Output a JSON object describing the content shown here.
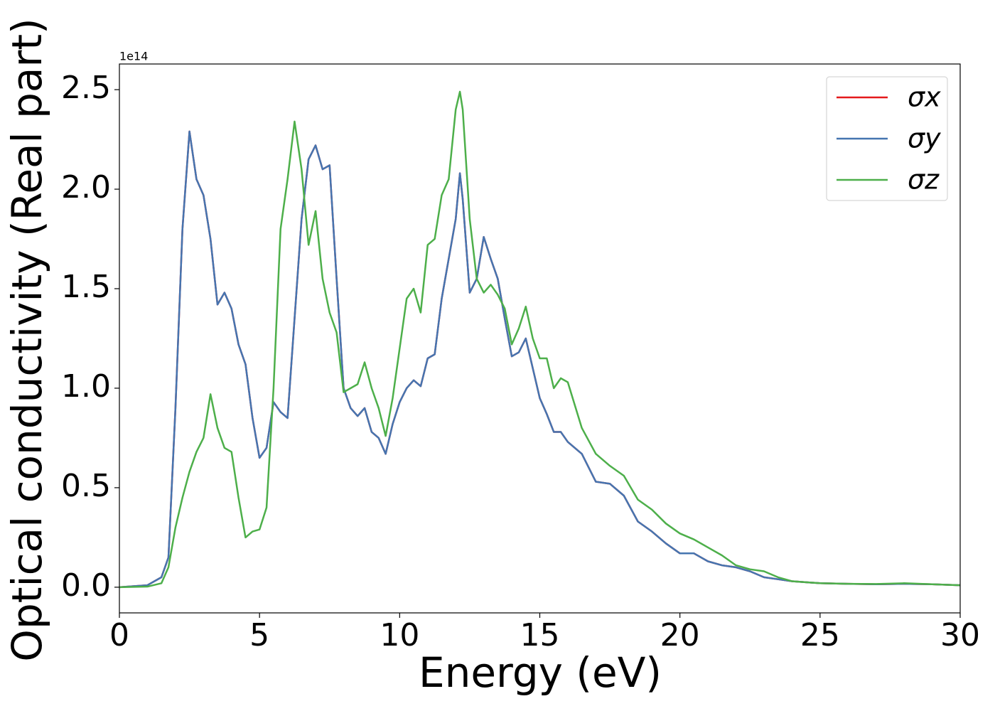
{
  "chart_data": {
    "type": "line",
    "xlabel": "Energy (eV)",
    "ylabel": "Optical conductivity (Real part)",
    "y_offset_label": "1e14",
    "xlim": [
      0,
      30
    ],
    "ylim": [
      -0.129,
      2.629
    ],
    "xticks": [
      0,
      5,
      10,
      15,
      20,
      25,
      30
    ],
    "yticks": [
      {
        "value": 0,
        "label": "0.0"
      },
      0.5,
      {
        "value": 1,
        "label": "1.0"
      },
      1.5,
      {
        "value": 2,
        "label": "2.0"
      },
      2.5
    ],
    "grid": false,
    "legend": "upper right",
    "x": [
      0,
      1,
      1.5,
      1.75,
      2,
      2.25,
      2.5,
      2.75,
      3,
      3.25,
      3.5,
      3.75,
      4,
      4.25,
      4.5,
      4.75,
      5,
      5.25,
      5.5,
      5.75,
      6,
      6.25,
      6.5,
      6.75,
      7,
      7.25,
      7.5,
      7.75,
      8,
      8.25,
      8.5,
      8.75,
      9,
      9.25,
      9.5,
      9.75,
      10,
      10.25,
      10.5,
      10.75,
      11,
      11.25,
      11.5,
      11.75,
      12,
      12.15,
      12.25,
      12.5,
      12.75,
      13,
      13.25,
      13.5,
      13.75,
      14,
      14.25,
      14.5,
      14.75,
      15,
      15.25,
      15.5,
      15.75,
      16,
      16.5,
      17,
      17.5,
      18,
      18.5,
      19,
      19.5,
      20,
      20.5,
      21,
      21.5,
      22,
      22.5,
      23,
      23.5,
      24,
      25,
      26,
      27,
      28,
      29,
      30
    ],
    "series": [
      {
        "name": "σx",
        "color": "#e41a1c",
        "values": [
          0,
          0.01,
          0.05,
          0.15,
          0.9,
          1.8,
          2.29,
          2.05,
          1.97,
          1.75,
          1.42,
          1.48,
          1.4,
          1.22,
          1.12,
          0.85,
          0.65,
          0.7,
          0.93,
          0.88,
          0.85,
          1.35,
          1.85,
          2.15,
          2.22,
          2.1,
          2.12,
          1.55,
          1.0,
          0.9,
          0.86,
          0.9,
          0.78,
          0.75,
          0.67,
          0.82,
          0.93,
          1.0,
          1.04,
          1.01,
          1.15,
          1.17,
          1.45,
          1.65,
          1.85,
          2.08,
          1.95,
          1.48,
          1.55,
          1.76,
          1.65,
          1.55,
          1.35,
          1.16,
          1.18,
          1.25,
          1.1,
          0.95,
          0.87,
          0.78,
          0.78,
          0.73,
          0.67,
          0.53,
          0.52,
          0.46,
          0.33,
          0.28,
          0.22,
          0.17,
          0.17,
          0.13,
          0.11,
          0.1,
          0.08,
          0.05,
          0.04,
          0.03,
          0.02,
          0.017,
          0.015,
          0.017,
          0.015,
          0.01
        ]
      },
      {
        "name": "σy",
        "color": "#4575b0",
        "values": [
          0,
          0.01,
          0.05,
          0.15,
          0.9,
          1.8,
          2.29,
          2.05,
          1.97,
          1.75,
          1.42,
          1.48,
          1.4,
          1.22,
          1.12,
          0.85,
          0.65,
          0.7,
          0.93,
          0.88,
          0.85,
          1.35,
          1.85,
          2.15,
          2.22,
          2.1,
          2.12,
          1.55,
          1.0,
          0.9,
          0.86,
          0.9,
          0.78,
          0.75,
          0.67,
          0.82,
          0.93,
          1.0,
          1.04,
          1.01,
          1.15,
          1.17,
          1.45,
          1.65,
          1.85,
          2.08,
          1.95,
          1.48,
          1.55,
          1.76,
          1.65,
          1.55,
          1.35,
          1.16,
          1.18,
          1.25,
          1.1,
          0.95,
          0.87,
          0.78,
          0.78,
          0.73,
          0.67,
          0.53,
          0.52,
          0.46,
          0.33,
          0.28,
          0.22,
          0.17,
          0.17,
          0.13,
          0.11,
          0.1,
          0.08,
          0.05,
          0.04,
          0.03,
          0.02,
          0.017,
          0.015,
          0.017,
          0.015,
          0.01
        ]
      },
      {
        "name": "σz",
        "color": "#4daf4a",
        "values": [
          0,
          0.003,
          0.02,
          0.1,
          0.3,
          0.45,
          0.58,
          0.68,
          0.75,
          0.97,
          0.8,
          0.7,
          0.68,
          0.45,
          0.25,
          0.28,
          0.29,
          0.4,
          1.0,
          1.8,
          2.05,
          2.34,
          2.1,
          1.72,
          1.89,
          1.55,
          1.38,
          1.28,
          0.98,
          1.0,
          1.02,
          1.13,
          1.0,
          0.9,
          0.76,
          0.95,
          1.2,
          1.45,
          1.5,
          1.38,
          1.72,
          1.75,
          1.97,
          2.05,
          2.4,
          2.49,
          2.4,
          1.85,
          1.55,
          1.48,
          1.52,
          1.47,
          1.4,
          1.22,
          1.3,
          1.41,
          1.25,
          1.15,
          1.15,
          1.0,
          1.05,
          1.03,
          0.8,
          0.67,
          0.61,
          0.56,
          0.44,
          0.39,
          0.32,
          0.27,
          0.24,
          0.2,
          0.16,
          0.11,
          0.09,
          0.08,
          0.05,
          0.03,
          0.02,
          0.017,
          0.016,
          0.02,
          0.015,
          0.01
        ]
      }
    ]
  }
}
